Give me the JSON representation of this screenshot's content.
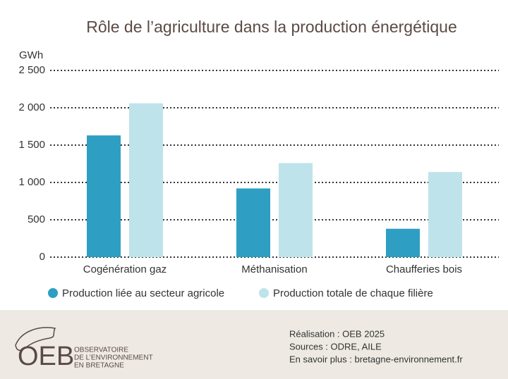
{
  "chart_data": {
    "type": "bar",
    "title": "Rôle de l’agriculture dans la production énergétique",
    "y_label": "GWh",
    "categories": [
      "Cogénération gaz",
      "Méthanisation",
      "Chaufferies bois"
    ],
    "series": [
      {
        "name": "Production liée au secteur agricole",
        "color": "#2e9fc2",
        "values": [
          1630,
          920,
          380
        ]
      },
      {
        "name": "Production totale de chaque filière",
        "color": "#bfe3ea",
        "values": [
          2060,
          1260,
          1140
        ]
      }
    ],
    "ylim": [
      0,
      2500
    ],
    "yticks": [
      0,
      500,
      {
        "value": 1000,
        "label": "1 000"
      },
      {
        "value": 1500,
        "label": "1 500"
      },
      {
        "value": 2000,
        "label": "2 000"
      },
      {
        "value": 2500,
        "label": "2 500"
      }
    ],
    "grid": true
  },
  "footer": {
    "logo": "OEB",
    "logo_lines": [
      "OBSERVATOIRE",
      "DE L’ENVIRONNEMENT",
      "EN BRETAGNE"
    ],
    "credits": [
      "Réalisation : OEB 2025",
      "Sources : ODRE, AILE",
      "En savoir plus : bretagne-environnement.fr"
    ]
  }
}
